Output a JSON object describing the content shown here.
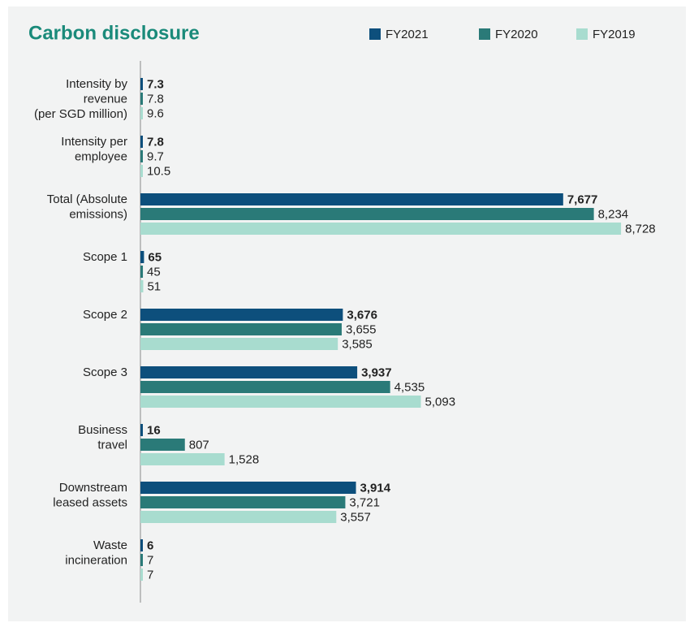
{
  "chart_data": {
    "type": "bar",
    "orientation": "horizontal",
    "title": "Carbon disclosure",
    "categories": [
      [
        "Intensity by",
        "revenue",
        "(per SGD million)"
      ],
      [
        "Intensity per",
        "employee"
      ],
      [
        "Total (Absolute",
        "emissions)"
      ],
      [
        "Scope 1"
      ],
      [
        "Scope 2"
      ],
      [
        "Scope 3"
      ],
      [
        "Business",
        "travel"
      ],
      [
        "Downstream",
        "leased assets"
      ],
      [
        "Waste",
        "incineration"
      ]
    ],
    "series": [
      {
        "name": "FY2021",
        "color": "#0d4f7c",
        "values": [
          7.3,
          7.8,
          7677,
          65,
          3676,
          3937,
          16,
          3914,
          6
        ],
        "value_labels": [
          "7.3",
          "7.8",
          "7,677",
          "65",
          "3,676",
          "3,937",
          "16",
          "3,914",
          "6"
        ]
      },
      {
        "name": "FY2020",
        "color": "#2a7a78",
        "values": [
          7.8,
          9.7,
          8234,
          45,
          3655,
          4535,
          807,
          3721,
          7
        ],
        "value_labels": [
          "7.8",
          "9.7",
          "8,234",
          "45",
          "3,655",
          "4,535",
          "807",
          "3,721",
          "7"
        ]
      },
      {
        "name": "FY2019",
        "color": "#a8dccf",
        "values": [
          9.6,
          10.5,
          8728,
          51,
          3585,
          5093,
          1528,
          3557,
          7
        ],
        "value_labels": [
          "9.6",
          "10.5",
          "8,728",
          "51",
          "3,585",
          "5,093",
          "1,528",
          "3,557",
          "7"
        ]
      }
    ],
    "xlim": [
      0,
      8800
    ]
  }
}
